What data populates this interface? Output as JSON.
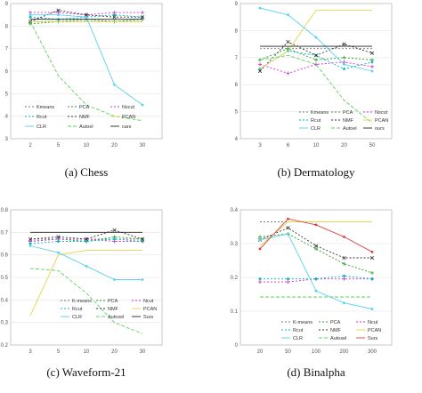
{
  "chart_data": [
    {
      "type": "line",
      "caption": "(a)  Chess",
      "x": [
        "2",
        "5",
        "10",
        "20",
        "30"
      ],
      "ytick_labels": [
        "3",
        "4",
        "5",
        "6",
        "7",
        "8",
        "9"
      ],
      "ylim": [
        0.3,
        0.9
      ],
      "grid": true,
      "legend": {
        "placement": "bottom-center",
        "labels": [
          "Kmeans",
          "PCA",
          "Nscut",
          "Rcut",
          "NMF",
          "PCAN",
          "CLR",
          "Autoel",
          "cars"
        ]
      },
      "series": [
        {
          "name": "Kmeans",
          "color": "#7a7a7a",
          "dash": "2,2",
          "marker": "none",
          "values": [
            0.82,
            0.82,
            0.82,
            0.82,
            0.82
          ]
        },
        {
          "name": "PCA",
          "color": "#2ca02c",
          "dash": "2,2",
          "marker": "plus",
          "values": [
            0.81,
            0.82,
            0.83,
            0.82,
            0.83
          ]
        },
        {
          "name": "Nscut",
          "color": "#d62fd6",
          "dash": "2,2",
          "marker": "plus",
          "values": [
            0.86,
            0.86,
            0.85,
            0.86,
            0.86
          ]
        },
        {
          "name": "Rcut",
          "color": "#00b8b8",
          "dash": "2,2",
          "marker": "circle",
          "values": [
            0.84,
            0.83,
            0.84,
            0.85,
            0.84
          ]
        },
        {
          "name": "NMF",
          "color": "#333333",
          "dash": "2,2",
          "marker": "x",
          "values": [
            0.82,
            0.87,
            0.85,
            0.84,
            0.84
          ]
        },
        {
          "name": "PCAN",
          "color": "#e8d44d",
          "dash": "",
          "marker": "none",
          "values": [
            0.82,
            0.82,
            0.82,
            0.82,
            0.82
          ]
        },
        {
          "name": "CLR",
          "color": "#59d1f0",
          "dash": "",
          "marker": "circle",
          "values": [
            0.85,
            0.85,
            0.84,
            0.54,
            0.45
          ]
        },
        {
          "name": "Autoel",
          "color": "#5ad45a",
          "dash": "4,2",
          "marker": "none",
          "values": [
            0.82,
            0.58,
            0.45,
            0.4,
            0.38
          ]
        },
        {
          "name": "cars",
          "color": "#222222",
          "dash": "",
          "marker": "none",
          "values": [
            0.83,
            0.83,
            0.83,
            0.83,
            0.83
          ]
        }
      ]
    },
    {
      "type": "line",
      "caption": "(b)  Dermatology",
      "x": [
        "3",
        "6",
        "10",
        "20",
        "50"
      ],
      "ytick_labels": [
        "4",
        "5",
        "6",
        "7",
        "8",
        "9"
      ],
      "ylim": [
        0.35,
        0.95
      ],
      "grid": true,
      "legend": {
        "placement": "bottom-right",
        "labels": [
          "Kmeans",
          "PCA",
          "Nscut",
          "Rcut",
          "NMF",
          "PCAN",
          "CLR",
          "Autoel",
          "ours"
        ]
      },
      "series": [
        {
          "name": "Kmeans",
          "color": "#7a7a7a",
          "dash": "2,2",
          "marker": "none",
          "values": [
            0.75,
            0.75,
            0.75,
            0.75,
            0.75
          ]
        },
        {
          "name": "PCA",
          "color": "#2ca02c",
          "dash": "2,2",
          "marker": "plus",
          "values": [
            0.7,
            0.75,
            0.7,
            0.71,
            0.7
          ]
        },
        {
          "name": "Nscut",
          "color": "#d62fd6",
          "dash": "2,2",
          "marker": "plus",
          "values": [
            0.68,
            0.64,
            0.68,
            0.69,
            0.67
          ]
        },
        {
          "name": "Rcut",
          "color": "#00b8b8",
          "dash": "2,2",
          "marker": "circle",
          "values": [
            0.66,
            0.74,
            0.72,
            0.66,
            0.69
          ]
        },
        {
          "name": "NMF",
          "color": "#333333",
          "dash": "2,2",
          "marker": "x",
          "values": [
            0.65,
            0.78,
            0.72,
            0.77,
            0.73
          ]
        },
        {
          "name": "PCAN",
          "color": "#e8d44d",
          "dash": "",
          "marker": "none",
          "values": [
            0.66,
            0.74,
            0.92,
            0.92,
            0.92
          ]
        },
        {
          "name": "CLR",
          "color": "#59d1f0",
          "dash": "",
          "marker": "circle",
          "values": [
            0.93,
            0.9,
            0.8,
            0.68,
            0.65
          ]
        },
        {
          "name": "Autoel",
          "color": "#5ad45a",
          "dash": "4,2",
          "marker": "none",
          "values": [
            0.7,
            0.72,
            0.68,
            0.52,
            0.42
          ]
        },
        {
          "name": "ours",
          "color": "#222222",
          "dash": "",
          "marker": "none",
          "values": [
            0.76,
            0.76,
            0.76,
            0.76,
            0.76
          ]
        }
      ]
    },
    {
      "type": "line",
      "caption": "(c)  Waveform-21",
      "x": [
        "3",
        "5",
        "10",
        "20",
        "30"
      ],
      "ytick_labels": [
        "0.2",
        "0.3",
        "0.4",
        "0.5",
        "0.6",
        "0.7",
        "0.8"
      ],
      "ylim": [
        0.2,
        0.8
      ],
      "grid": true,
      "legend": {
        "placement": "bottom-center",
        "labels": [
          "K-means",
          "PCA",
          "Ncut",
          "Rcut",
          "NMF",
          "PCAN",
          "CLR",
          "Autosel",
          "Surs"
        ]
      },
      "series": [
        {
          "name": "K-means",
          "color": "#7a7a7a",
          "dash": "2,2",
          "marker": "none",
          "values": [
            0.67,
            0.67,
            0.67,
            0.67,
            0.67
          ]
        },
        {
          "name": "PCA",
          "color": "#2ca02c",
          "dash": "2,2",
          "marker": "plus",
          "values": [
            0.66,
            0.67,
            0.66,
            0.68,
            0.67
          ]
        },
        {
          "name": "Ncut",
          "color": "#d62fd6",
          "dash": "2,2",
          "marker": "plus",
          "values": [
            0.66,
            0.67,
            0.67,
            0.66,
            0.66
          ]
        },
        {
          "name": "Rcut",
          "color": "#00b8b8",
          "dash": "2,2",
          "marker": "circle",
          "values": [
            0.65,
            0.66,
            0.66,
            0.67,
            0.66
          ]
        },
        {
          "name": "NMF",
          "color": "#333333",
          "dash": "2,2",
          "marker": "x",
          "values": [
            0.67,
            0.68,
            0.67,
            0.71,
            0.67
          ]
        },
        {
          "name": "PCAN",
          "color": "#e8d44d",
          "dash": "",
          "marker": "none",
          "values": [
            0.33,
            0.6,
            0.62,
            0.62,
            0.62
          ]
        },
        {
          "name": "CLR",
          "color": "#59d1f0",
          "dash": "",
          "marker": "circle",
          "values": [
            0.64,
            0.61,
            0.55,
            0.49,
            0.49
          ]
        },
        {
          "name": "Autosel",
          "color": "#5ad45a",
          "dash": "4,2",
          "marker": "none",
          "values": [
            0.54,
            0.53,
            0.43,
            0.3,
            0.25
          ]
        },
        {
          "name": "Surs",
          "color": "#222222",
          "dash": "",
          "marker": "none",
          "values": [
            0.7,
            0.7,
            0.7,
            0.7,
            0.7
          ]
        }
      ]
    },
    {
      "type": "line",
      "caption": "(d)  Binalpha",
      "x": [
        "20",
        "50",
        "100",
        "200",
        "300"
      ],
      "ytick_labels": [
        "0",
        "0.1",
        "0.2",
        "0.3",
        "0.4"
      ],
      "ylim": [
        0.0,
        0.45
      ],
      "grid": true,
      "legend": {
        "placement": "bottom-right",
        "labels": [
          "K-means",
          "PCA",
          "Ncut",
          "Rcut",
          "NMF",
          "PCAN",
          "CLR",
          "Autosel",
          "Surs"
        ]
      },
      "series": [
        {
          "name": "K-means",
          "color": "#7a7a7a",
          "dash": "2,2",
          "marker": "none",
          "values": [
            0.41,
            0.41,
            0.41,
            0.41,
            0.41
          ]
        },
        {
          "name": "PCA",
          "color": "#2ca02c",
          "dash": "2,2",
          "marker": "plus",
          "values": [
            0.36,
            0.37,
            0.32,
            0.27,
            0.24
          ]
        },
        {
          "name": "Ncut",
          "color": "#d62fd6",
          "dash": "2,2",
          "marker": "plus",
          "values": [
            0.21,
            0.21,
            0.22,
            0.22,
            0.22
          ]
        },
        {
          "name": "Rcut",
          "color": "#00b8b8",
          "dash": "2,2",
          "marker": "circle",
          "values": [
            0.22,
            0.22,
            0.22,
            0.23,
            0.22
          ]
        },
        {
          "name": "NMF",
          "color": "#333333",
          "dash": "2,2",
          "marker": "x",
          "values": [
            0.35,
            0.39,
            0.33,
            0.29,
            0.29
          ]
        },
        {
          "name": "PCAN",
          "color": "#e8d44d",
          "dash": "",
          "marker": "none",
          "values": [
            0.33,
            0.41,
            0.41,
            0.41,
            0.41
          ]
        },
        {
          "name": "CLR",
          "color": "#59d1f0",
          "dash": "",
          "marker": "circle",
          "values": [
            0.35,
            0.37,
            0.18,
            0.14,
            0.12
          ]
        },
        {
          "name": "Autosel",
          "color": "#5ad45a",
          "dash": "4,2",
          "marker": "none",
          "values": [
            0.16,
            0.16,
            0.16,
            0.16,
            0.16
          ]
        },
        {
          "name": "Surs",
          "color": "#d94040",
          "dash": "",
          "marker": "circle",
          "values": [
            0.32,
            0.42,
            0.4,
            0.36,
            0.31
          ]
        }
      ]
    }
  ]
}
